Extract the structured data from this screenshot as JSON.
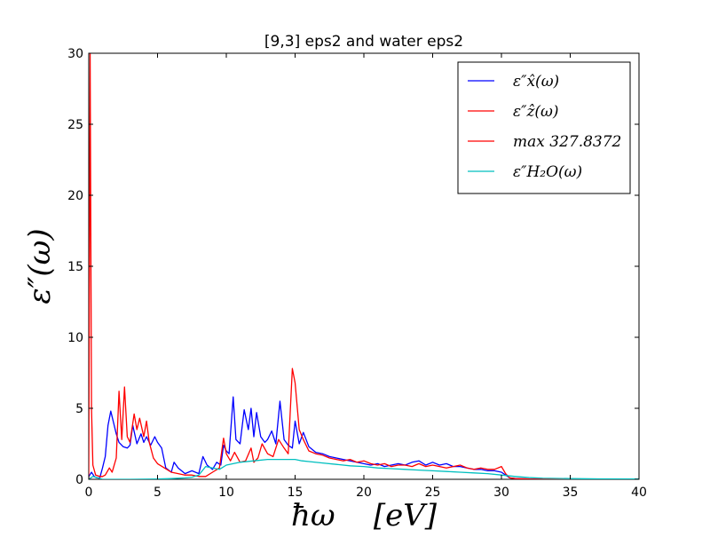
{
  "chart_data": {
    "type": "line",
    "title": "[9,3] eps2 and water eps2",
    "xlabel": "ħω    [eV]",
    "ylabel": "ε″(ω)",
    "xlim": [
      0,
      40
    ],
    "ylim": [
      0,
      30
    ],
    "x_ticks": [
      0,
      5,
      10,
      15,
      20,
      25,
      30,
      35,
      40
    ],
    "y_ticks": [
      0,
      5,
      10,
      15,
      20,
      25,
      30
    ],
    "x_tick_labels": [
      "0",
      "5",
      "10",
      "15",
      "20",
      "25",
      "30",
      "35",
      "40"
    ],
    "y_tick_labels": [
      "0",
      "5",
      "10",
      "15",
      "20",
      "25",
      "30"
    ],
    "grid": false,
    "legend_position": "top-right",
    "series": [
      {
        "name": "ε″x̂(ω)",
        "color": "#0000ff",
        "x": [
          0.0,
          0.2,
          0.4,
          0.6,
          0.8,
          1.0,
          1.2,
          1.4,
          1.6,
          1.8,
          2.0,
          2.2,
          2.5,
          2.8,
          3.0,
          3.2,
          3.5,
          3.8,
          4.0,
          4.2,
          4.5,
          4.8,
          5.0,
          5.3,
          5.6,
          6.0,
          6.2,
          6.5,
          7.0,
          7.5,
          8.0,
          8.3,
          8.6,
          9.0,
          9.3,
          9.6,
          9.8,
          10.0,
          10.2,
          10.5,
          10.7,
          11.0,
          11.3,
          11.6,
          11.8,
          12.0,
          12.2,
          12.5,
          12.8,
          13.0,
          13.3,
          13.6,
          13.9,
          14.2,
          14.5,
          14.8,
          15.0,
          15.3,
          15.6,
          16.0,
          16.5,
          17.0,
          17.5,
          18.0,
          18.5,
          19.0,
          19.5,
          20.0,
          20.5,
          21.0,
          21.5,
          22.0,
          22.5,
          23.0,
          23.5,
          24.0,
          24.5,
          25.0,
          25.5,
          26.0,
          26.5,
          27.0,
          27.5,
          28.0,
          28.5,
          29.0,
          29.5,
          30.0,
          30.3,
          30.6,
          31.0,
          32.0,
          34.0,
          36.0,
          38.0,
          40.0
        ],
        "y": [
          0.2,
          0.5,
          0.2,
          0.1,
          0.1,
          0.8,
          1.6,
          3.8,
          4.8,
          4.0,
          3.2,
          2.6,
          2.3,
          2.2,
          2.4,
          3.8,
          2.5,
          3.2,
          2.6,
          3.0,
          2.4,
          3.0,
          2.6,
          2.2,
          0.8,
          0.5,
          1.2,
          0.8,
          0.4,
          0.6,
          0.4,
          1.6,
          1.0,
          0.7,
          1.2,
          1.0,
          2.4,
          2.0,
          1.8,
          5.8,
          2.8,
          2.5,
          4.9,
          3.5,
          5.0,
          3.0,
          4.7,
          3.0,
          2.6,
          2.8,
          3.4,
          2.5,
          5.5,
          2.8,
          2.4,
          2.2,
          4.1,
          2.5,
          3.3,
          2.3,
          1.9,
          1.8,
          1.6,
          1.5,
          1.4,
          1.3,
          1.2,
          1.1,
          1.0,
          1.1,
          0.9,
          1.0,
          1.1,
          1.0,
          1.2,
          1.3,
          1.0,
          1.2,
          1.0,
          1.1,
          0.9,
          0.9,
          0.8,
          0.7,
          0.7,
          0.6,
          0.6,
          0.5,
          0.3,
          0.1,
          0.05,
          0.02,
          0.01,
          0.0,
          0.0,
          0.0
        ]
      },
      {
        "name": "ε″ẑ(ω)",
        "color": "#ff0000",
        "x": [
          0.0,
          0.1,
          0.2,
          0.3,
          0.5,
          0.8,
          1.0,
          1.2,
          1.5,
          1.7,
          2.0,
          2.2,
          2.4,
          2.6,
          2.8,
          3.0,
          3.3,
          3.5,
          3.7,
          4.0,
          4.2,
          4.4,
          4.7,
          5.0,
          5.5,
          6.0,
          6.5,
          7.0,
          7.5,
          8.0,
          8.5,
          9.0,
          9.5,
          9.8,
          10.0,
          10.3,
          10.6,
          11.0,
          11.4,
          11.8,
          12.0,
          12.3,
          12.6,
          13.0,
          13.4,
          13.8,
          14.2,
          14.5,
          14.8,
          15.0,
          15.3,
          15.6,
          16.0,
          16.5,
          17.0,
          17.5,
          18.0,
          18.5,
          19.0,
          19.5,
          20.0,
          20.5,
          21.0,
          21.5,
          22.0,
          22.5,
          23.0,
          23.5,
          24.0,
          24.5,
          25.0,
          25.5,
          26.0,
          26.5,
          27.0,
          27.5,
          28.0,
          28.5,
          29.0,
          29.5,
          30.0,
          30.3,
          30.6,
          31.0,
          32.0,
          34.0,
          36.0,
          38.0,
          40.0
        ],
        "y": [
          0.0,
          30.0,
          5.0,
          1.0,
          0.3,
          0.2,
          0.2,
          0.3,
          0.8,
          0.5,
          1.5,
          6.2,
          2.8,
          6.5,
          3.0,
          2.6,
          4.6,
          3.5,
          4.3,
          3.0,
          4.1,
          2.6,
          1.5,
          1.1,
          0.8,
          0.5,
          0.4,
          0.3,
          0.3,
          0.2,
          0.2,
          0.5,
          0.8,
          2.9,
          1.8,
          1.3,
          1.9,
          1.2,
          1.3,
          2.2,
          1.2,
          1.5,
          2.5,
          1.8,
          1.6,
          2.8,
          2.2,
          1.8,
          7.8,
          6.8,
          3.5,
          2.8,
          2.0,
          1.8,
          1.7,
          1.5,
          1.4,
          1.3,
          1.4,
          1.2,
          1.3,
          1.1,
          1.0,
          1.1,
          0.9,
          1.0,
          1.0,
          0.9,
          1.1,
          0.9,
          1.0,
          0.9,
          0.8,
          0.9,
          1.0,
          0.8,
          0.7,
          0.8,
          0.7,
          0.7,
          0.9,
          0.4,
          0.1,
          0.05,
          0.02,
          0.01,
          0.0,
          0.0,
          0.0
        ]
      },
      {
        "name": "max 327.8372",
        "color": "#ff0000",
        "x": [],
        "y": []
      },
      {
        "name": "ε″H₂O(ω)",
        "color": "#00bfbf",
        "x": [
          0.0,
          0.3,
          1.0,
          3.0,
          5.0,
          6.0,
          7.0,
          7.5,
          8.0,
          8.5,
          9.0,
          9.5,
          10.0,
          10.5,
          11.0,
          12.0,
          13.0,
          14.0,
          14.5,
          15.0,
          15.5,
          16.0,
          17.0,
          18.0,
          19.0,
          20.0,
          21.0,
          22.0,
          23.0,
          24.0,
          25.0,
          26.0,
          27.0,
          28.0,
          29.0,
          30.0,
          31.0,
          32.0,
          33.0,
          35.0,
          37.0,
          40.0
        ],
        "y": [
          0.0,
          0.2,
          0.0,
          0.0,
          0.02,
          0.05,
          0.1,
          0.15,
          0.3,
          0.9,
          0.8,
          0.7,
          1.0,
          1.1,
          1.2,
          1.3,
          1.4,
          1.4,
          1.4,
          1.4,
          1.3,
          1.25,
          1.15,
          1.05,
          0.95,
          0.9,
          0.8,
          0.75,
          0.7,
          0.65,
          0.6,
          0.55,
          0.5,
          0.45,
          0.4,
          0.3,
          0.2,
          0.12,
          0.08,
          0.05,
          0.03,
          0.02
        ]
      }
    ]
  }
}
